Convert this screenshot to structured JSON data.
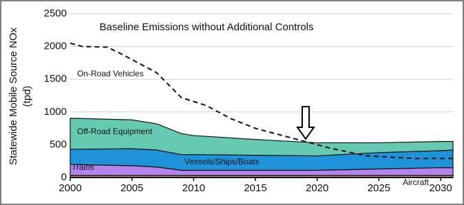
{
  "chart_data": {
    "type": "area",
    "title": "Baseline Emissions without Additional Controls",
    "y_label": [
      "Statewide Mobile Source NOx",
      "(tpd)"
    ],
    "x": [
      2000,
      2005,
      2007,
      2009,
      2010,
      2015,
      2020,
      2025,
      2030,
      2031
    ],
    "series": [
      {
        "name": "Aircraft",
        "color": "#f0a050",
        "values": [
          30,
          30,
          30,
          30,
          30,
          30,
          30,
          30,
          30,
          30
        ]
      },
      {
        "name": "Trains",
        "color": "#b384ec",
        "values": [
          170,
          150,
          130,
          80,
          80,
          80,
          80,
          100,
          120,
          120
        ]
      },
      {
        "name": "Vessels/Ships/Boats",
        "color": "#1f93da",
        "values": [
          230,
          260,
          260,
          240,
          240,
          230,
          220,
          250,
          260,
          270
        ]
      },
      {
        "name": "Off-Road Equipment",
        "color": "#66c9b1",
        "values": [
          475,
          440,
          400,
          320,
          290,
          240,
          200,
          150,
          140,
          130
        ]
      }
    ],
    "line": {
      "name": "On-Road Vehicles",
      "color": "#111111",
      "x": [
        2000,
        2001,
        2003,
        2004,
        2007,
        2009,
        2011,
        2013,
        2015,
        2018,
        2021,
        2024,
        2028,
        2031
      ],
      "values": [
        2050,
        2000,
        1990,
        1900,
        1600,
        1220,
        1100,
        900,
        750,
        600,
        450,
        330,
        290,
        290
      ]
    },
    "xlim": [
      2000,
      2031
    ],
    "ylim": [
      0,
      2500
    ],
    "xticks": [
      2000,
      2005,
      2010,
      2015,
      2020,
      2025,
      2030
    ],
    "yticks": [
      0,
      500,
      1000,
      1500,
      2000,
      2500
    ],
    "grid": true
  }
}
